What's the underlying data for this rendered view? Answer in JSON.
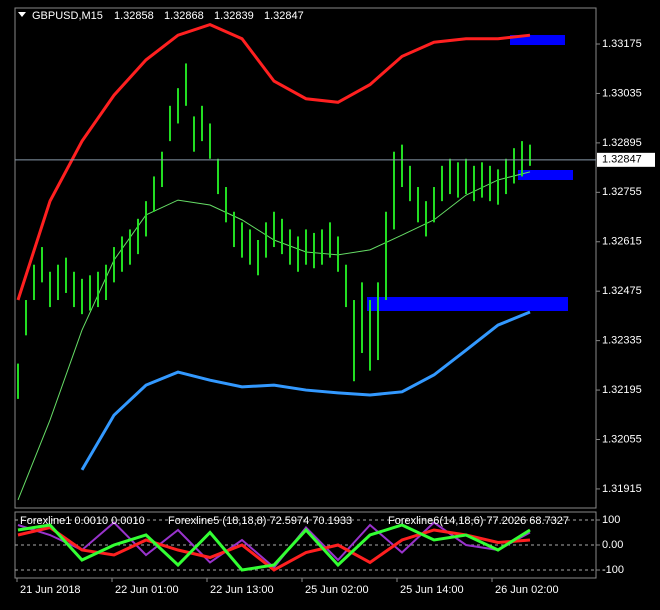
{
  "header": {
    "symbol": "GBPUSD,M15",
    "open": 1.32858,
    "high": 1.32868,
    "low": 1.32839,
    "close": 1.32847
  },
  "chart_data": [
    {
      "type": "ohlc",
      "color": "#22dd22",
      "high": [
        1.3227,
        1.3245,
        1.3255,
        1.326,
        1.3253,
        1.3255,
        1.3257,
        1.3253,
        1.3251,
        1.3252,
        1.3253,
        1.3255,
        1.326,
        1.3263,
        1.3265,
        1.3268,
        1.3273,
        1.328,
        1.3287,
        1.33,
        1.3305,
        1.3312,
        1.3297,
        1.33,
        1.3295,
        1.3285,
        1.3277,
        1.327,
        1.3267,
        1.3265,
        1.3262,
        1.3267,
        1.327,
        1.3268,
        1.3265,
        1.3263,
        1.3265,
        1.3264,
        1.3265,
        1.3267,
        1.3263,
        1.3255,
        1.3245,
        1.325,
        1.3245,
        1.325,
        1.327,
        1.3287,
        1.3289,
        1.3283,
        1.3277,
        1.3273,
        1.3277,
        1.3283,
        1.3285,
        1.3284,
        1.3285,
        1.3283,
        1.3284,
        1.3283,
        1.3282,
        1.3285,
        1.3288,
        1.329,
        1.3289
      ],
      "low": [
        1.3217,
        1.3235,
        1.3245,
        1.325,
        1.3243,
        1.3245,
        1.3247,
        1.3243,
        1.3241,
        1.3242,
        1.3243,
        1.3245,
        1.325,
        1.3253,
        1.3255,
        1.3258,
        1.3263,
        1.327,
        1.3277,
        1.329,
        1.3295,
        1.33,
        1.3287,
        1.329,
        1.3285,
        1.3275,
        1.3267,
        1.326,
        1.3257,
        1.3255,
        1.3252,
        1.3257,
        1.326,
        1.3258,
        1.3255,
        1.3253,
        1.3255,
        1.3254,
        1.3255,
        1.3257,
        1.3253,
        1.3243,
        1.3222,
        1.323,
        1.3225,
        1.3228,
        1.3245,
        1.3265,
        1.3277,
        1.3273,
        1.3267,
        1.3263,
        1.3267,
        1.3273,
        1.3275,
        1.3274,
        1.3275,
        1.3273,
        1.3274,
        1.3273,
        1.3272,
        1.3275,
        1.3278,
        1.328,
        1.3283
      ],
      "bands": [
        {
          "color": "#ff2020",
          "values": [
            1.3245,
            1.3273,
            1.329,
            1.3303,
            1.3313,
            1.332,
            1.3323,
            1.3319,
            1.3307,
            1.3302,
            1.3301,
            1.3306,
            1.3314,
            1.3318,
            1.3319,
            1.3319,
            1.332
          ]
        },
        {
          "color": "#3399ff",
          "values": [
            null,
            null,
            1.31969,
            1.32124,
            1.32209,
            1.32246,
            1.32223,
            1.32204,
            1.32209,
            1.32195,
            1.32187,
            1.32181,
            1.3219,
            1.32238,
            1.32308,
            1.32379,
            1.32416
          ]
        },
        {
          "color": "#66dd66",
          "values": [
            1.31884,
            1.3211,
            1.32365,
            1.32563,
            1.32691,
            1.32733,
            1.32719,
            1.32677,
            1.3262,
            1.32586,
            1.32578,
            1.32592,
            1.32634,
            1.32677,
            1.32747,
            1.3279,
            1.32813
          ]
        }
      ],
      "current_price": 1.32847,
      "ylim": [
        1.31861,
        1.33277
      ],
      "yticks": [
        1.31915,
        1.32055,
        1.32195,
        1.32335,
        1.32475,
        1.32615,
        1.32755,
        1.32895,
        1.33035,
        1.33175
      ],
      "x_labels": [
        "21 Jun 2018",
        "22 Jun 01:00",
        "22 Jun 13:00",
        "25 Jun 02:00",
        "25 Jun 14:00",
        "26 Jun 02:00"
      ]
    },
    {
      "type": "oscillator",
      "indicators": [
        "Forexline1 0.0010 0.0010",
        "Forexline5 (18,18,8) 72.5974 70.1933",
        "Forexline6(14,18,6) 77.2026 68.7327"
      ],
      "lines": [
        {
          "color": "#9933cc",
          "values": [
            80,
            40,
            -20,
            90,
            -40,
            60,
            -70,
            20,
            -90,
            70,
            -60,
            80,
            -30,
            90,
            0,
            -20,
            50
          ]
        },
        {
          "color": "#ff2020",
          "values": [
            40,
            70,
            -20,
            -40,
            20,
            -20,
            -50,
            0,
            -100,
            -30,
            0,
            -70,
            20,
            60,
            40,
            10,
            20
          ]
        },
        {
          "color": "#33ff33",
          "values": [
            60,
            80,
            -60,
            0,
            40,
            -80,
            50,
            -100,
            -80,
            60,
            -80,
            40,
            80,
            20,
            40,
            -20,
            60
          ]
        }
      ],
      "ylim": [
        -132,
        132
      ],
      "yticks": [
        100,
        {
          "value": 0,
          "label": "0.00"
        },
        -100
      ]
    }
  ]
}
